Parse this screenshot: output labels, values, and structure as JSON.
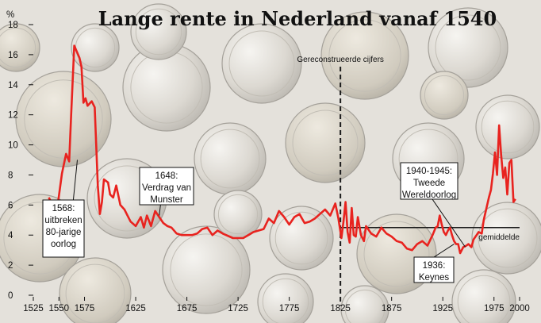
{
  "chart_data": {
    "type": "line",
    "title": "Lange rente in Nederland vanaf 1540",
    "ylabel": "%",
    "xlim": [
      1525,
      2000
    ],
    "ylim": [
      0,
      18
    ],
    "xticks": [
      1525,
      1550,
      1575,
      1625,
      1675,
      1725,
      1775,
      1825,
      1875,
      1925,
      1975,
      2000
    ],
    "yticks": [
      0,
      2,
      4,
      6,
      8,
      10,
      12,
      14,
      16,
      18
    ],
    "series": [
      {
        "color": "#e8231f",
        "x": [
          1540,
          1548,
          1553,
          1557,
          1560,
          1562,
          1565,
          1570,
          1572,
          1574,
          1576,
          1578,
          1582,
          1585,
          1588,
          1590,
          1592,
          1594,
          1598,
          1600,
          1603,
          1606,
          1610,
          1614,
          1617,
          1620,
          1625,
          1630,
          1633,
          1636,
          1640,
          1644,
          1648,
          1652,
          1656,
          1660,
          1665,
          1670,
          1675,
          1680,
          1685,
          1690,
          1695,
          1700,
          1705,
          1710,
          1720,
          1730,
          1740,
          1750,
          1755,
          1760,
          1765,
          1770,
          1775,
          1780,
          1785,
          1790,
          1795,
          1800,
          1805,
          1810,
          1815,
          1820,
          1823,
          1826,
          1828,
          1830,
          1832,
          1834,
          1836,
          1838,
          1840,
          1842,
          1845,
          1848,
          1850,
          1855,
          1860,
          1865,
          1870,
          1875,
          1880,
          1885,
          1890,
          1895,
          1900,
          1905,
          1910,
          1915,
          1918,
          1920,
          1922,
          1924,
          1926,
          1928,
          1930,
          1932,
          1934,
          1936,
          1938,
          1940,
          1942,
          1945,
          1948,
          1950,
          1953,
          1955,
          1958,
          1960,
          1963,
          1965,
          1968,
          1970,
          1972,
          1974,
          1976,
          1978,
          1980,
          1982,
          1984,
          1986,
          1988,
          1990,
          1992,
          1994,
          1996
        ],
        "values": [
          6.5,
          5.6,
          8.1,
          9.4,
          8.9,
          12.0,
          16.6,
          15.8,
          15.2,
          12.8,
          13.1,
          12.6,
          12.9,
          12.5,
          7.3,
          5.4,
          6.2,
          7.7,
          7.5,
          6.7,
          6.5,
          7.3,
          6.0,
          5.7,
          5.3,
          4.9,
          4.6,
          5.2,
          4.5,
          5.3,
          4.6,
          5.6,
          5.2,
          4.8,
          4.6,
          4.5,
          4.1,
          4.0,
          4.0,
          4.0,
          4.1,
          4.4,
          4.5,
          4.0,
          4.3,
          4.1,
          3.8,
          3.8,
          4.2,
          4.4,
          5.1,
          4.8,
          5.6,
          5.2,
          4.7,
          5.2,
          5.4,
          4.8,
          4.9,
          5.1,
          5.4,
          5.7,
          5.3,
          6.1,
          5.1,
          3.8,
          4.9,
          6.2,
          4.2,
          3.5,
          5.8,
          4.0,
          3.9,
          5.2,
          4.0,
          3.6,
          4.6,
          4.1,
          3.9,
          4.5,
          4.1,
          3.9,
          3.6,
          3.5,
          3.1,
          3.0,
          3.4,
          3.6,
          3.3,
          4.0,
          4.5,
          4.6,
          5.3,
          4.7,
          4.2,
          4.0,
          4.3,
          4.5,
          4.0,
          3.6,
          3.4,
          3.4,
          2.8,
          3.2,
          3.3,
          3.4,
          3.2,
          3.7,
          4.0,
          4.2,
          4.1,
          5.0,
          5.9,
          6.5,
          7.0,
          8.1,
          9.5,
          8.0,
          11.3,
          9.3,
          7.8,
          8.5,
          6.7,
          8.8,
          9.0,
          6.2,
          6.4
        ]
      }
    ],
    "reference_line": {
      "label": "gemiddelde",
      "x_from": 1825,
      "x_to": 2000,
      "y": 4.5
    },
    "divider": {
      "x": 1825,
      "label": "Gereconstrueerde cijfers"
    },
    "annotations": [
      {
        "lines": [
          "1568:",
          "uitbreken",
          "80-jarige",
          "oorlog"
        ],
        "x": 1568,
        "y": 9.0
      },
      {
        "lines": [
          "1648:",
          "Verdrag van",
          "Munster"
        ],
        "x": 1648,
        "y": 5.3
      },
      {
        "lines": [
          "1940-1945:",
          "Tweede",
          "Wereldoorlog"
        ],
        "x": 1947,
        "y": 3.2
      },
      {
        "lines": [
          "1936:",
          "Keynes"
        ],
        "x": 1936,
        "y": 3.4
      }
    ],
    "grid": false,
    "background": "coins-photo",
    "colors": {
      "line": "#e8231f",
      "divider": "#1a1a1a",
      "reference": "#1a1a1a",
      "label_box": "#ffffff"
    }
  }
}
